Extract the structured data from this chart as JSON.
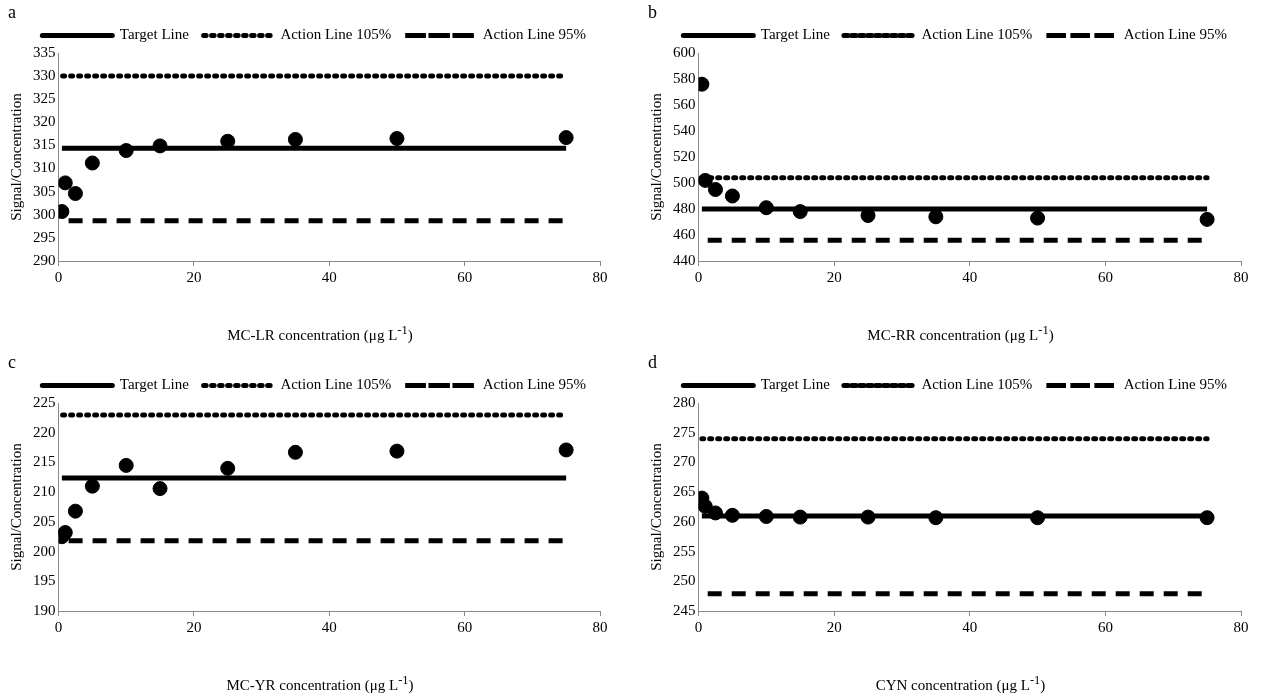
{
  "chart_data": [
    {
      "type": "scatter",
      "title": "a",
      "xlabel": "MC-LR concentration (μg L$^{-1}$)",
      "ylabel": "Signal/Concentration",
      "xlim": [
        0,
        80
      ],
      "xticks": [
        0,
        20,
        40,
        60,
        80
      ],
      "ylim": [
        290,
        335
      ],
      "yticks": [
        290,
        295,
        300,
        305,
        310,
        315,
        320,
        325,
        330,
        335
      ],
      "grid": false,
      "legend": "top",
      "series": [
        {
          "type": "line",
          "name": "Target Line",
          "color": "#000000",
          "line_style": "solid",
          "x": [
            0.5,
            75
          ],
          "values": [
            314.4,
            314.4
          ]
        },
        {
          "type": "line",
          "name": "Action Line 105%",
          "color": "#000000",
          "line_style": "dotted",
          "x": [
            0.5,
            75
          ],
          "values": [
            330,
            330
          ]
        },
        {
          "type": "line",
          "name": "Action Line 95%",
          "color": "#000000",
          "line_style": "dashed",
          "x": [
            0.5,
            75
          ],
          "values": [
            298.7,
            298.7
          ]
        },
        {
          "type": "scatter",
          "color": "#000000",
          "marker": "circle",
          "x": [
            0.5,
            1,
            2.5,
            5,
            10,
            15,
            25,
            35,
            50,
            75
          ],
          "values": [
            300.7,
            306.9,
            304.6,
            311.2,
            313.9,
            314.9,
            315.9,
            316.3,
            316.5,
            316.7
          ]
        }
      ]
    },
    {
      "type": "scatter",
      "title": "b",
      "xlabel": "MC-RR concentration (μg L$^{-1}$)",
      "ylabel": "Signal/Concentration",
      "xlim": [
        0,
        80
      ],
      "xticks": [
        0,
        20,
        40,
        60,
        80
      ],
      "ylim": [
        440,
        600
      ],
      "yticks": [
        440,
        460,
        480,
        500,
        520,
        540,
        560,
        580,
        600
      ],
      "grid": false,
      "legend": "top",
      "series": [
        {
          "type": "line",
          "name": "Target Line",
          "color": "#000000",
          "line_style": "solid",
          "x": [
            0.5,
            75
          ],
          "values": [
            480,
            480
          ]
        },
        {
          "type": "line",
          "name": "Action Line 105%",
          "color": "#000000",
          "line_style": "dotted",
          "x": [
            0.5,
            75
          ],
          "values": [
            504,
            504
          ]
        },
        {
          "type": "line",
          "name": "Action Line 95%",
          "color": "#000000",
          "line_style": "dashed",
          "x": [
            0.5,
            75
          ],
          "values": [
            456,
            456
          ]
        },
        {
          "type": "scatter",
          "color": "#000000",
          "marker": "circle",
          "x": [
            0.5,
            1,
            2.5,
            5,
            10,
            15,
            25,
            35,
            50,
            75
          ],
          "values": [
            576,
            502,
            495,
            490,
            481,
            478,
            475,
            474,
            473,
            472
          ]
        }
      ]
    },
    {
      "type": "scatter",
      "title": "c",
      "xlabel": "MC-YR concentration (μg L$^{-1}$)",
      "ylabel": "Signal/Concentration",
      "xlim": [
        0,
        80
      ],
      "xticks": [
        0,
        20,
        40,
        60,
        80
      ],
      "ylim": [
        190,
        225
      ],
      "yticks": [
        190,
        195,
        200,
        205,
        210,
        215,
        220,
        225
      ],
      "grid": false,
      "legend": "top",
      "series": [
        {
          "type": "line",
          "name": "Target Line",
          "color": "#000000",
          "line_style": "solid",
          "x": [
            0.5,
            75
          ],
          "values": [
            212.4,
            212.4
          ]
        },
        {
          "type": "line",
          "name": "Action Line 105%",
          "color": "#000000",
          "line_style": "dotted",
          "x": [
            0.5,
            75
          ],
          "values": [
            223,
            223
          ]
        },
        {
          "type": "line",
          "name": "Action Line 95%",
          "color": "#000000",
          "line_style": "dashed",
          "x": [
            0.5,
            75
          ],
          "values": [
            201.8,
            201.8
          ]
        },
        {
          "type": "scatter",
          "color": "#000000",
          "marker": "circle",
          "x": [
            0.5,
            1,
            2.5,
            5,
            10,
            15,
            25,
            35,
            50,
            75
          ],
          "values": [
            202.5,
            203.2,
            206.8,
            211.0,
            214.5,
            210.6,
            214.0,
            216.7,
            216.9,
            217.1
          ]
        }
      ]
    },
    {
      "type": "scatter",
      "title": "d",
      "xlabel": "CYN concentration (μg L$^{-1}$)",
      "ylabel": "Signal/Concentration",
      "xlim": [
        0,
        80
      ],
      "xticks": [
        0,
        20,
        40,
        60,
        80
      ],
      "ylim": [
        245,
        280
      ],
      "yticks": [
        245,
        250,
        255,
        260,
        265,
        270,
        275,
        280
      ],
      "grid": false,
      "legend": "top",
      "series": [
        {
          "type": "line",
          "name": "Target Line",
          "color": "#000000",
          "line_style": "solid",
          "x": [
            0.5,
            75
          ],
          "values": [
            261,
            261
          ]
        },
        {
          "type": "line",
          "name": "Action Line 105%",
          "color": "#000000",
          "line_style": "dotted",
          "x": [
            0.5,
            75
          ],
          "values": [
            274,
            274
          ]
        },
        {
          "type": "line",
          "name": "Action Line 95%",
          "color": "#000000",
          "line_style": "dashed",
          "x": [
            0.5,
            75
          ],
          "values": [
            247.9,
            247.9
          ]
        },
        {
          "type": "scatter",
          "color": "#000000",
          "marker": "circle",
          "x": [
            0.5,
            1,
            2.5,
            5,
            10,
            15,
            25,
            35,
            50,
            75
          ],
          "values": [
            264.0,
            262.6,
            261.5,
            261.1,
            260.9,
            260.8,
            260.8,
            260.7,
            260.7,
            260.7
          ]
        }
      ]
    }
  ]
}
